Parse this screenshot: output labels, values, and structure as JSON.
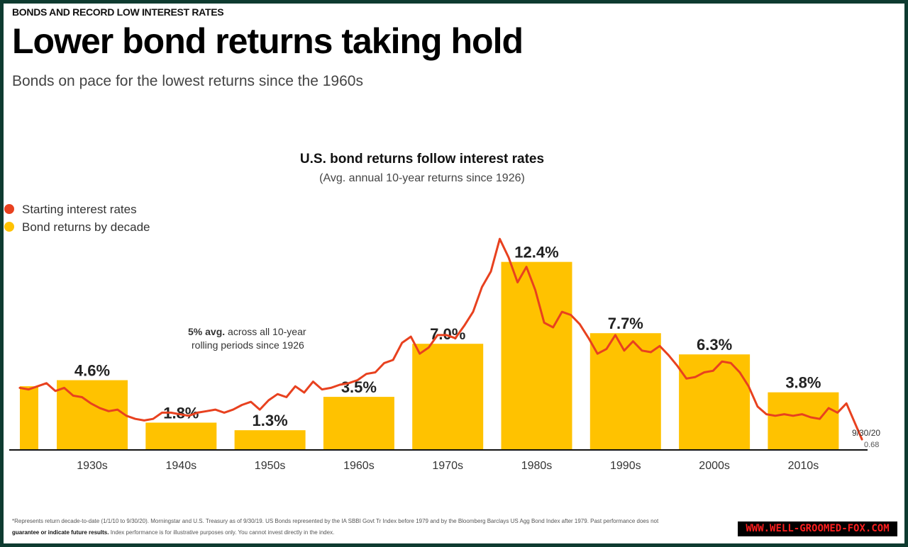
{
  "header": {
    "kicker": "BONDS AND RECORD LOW INTEREST RATES",
    "title": "Lower bond returns taking hold",
    "subtitle": "Bonds on pace for the lowest returns since the 1960s"
  },
  "chart_data": {
    "type": "bar",
    "title": "U.S. bond returns follow interest rates",
    "subtitle": "(Avg. annual 10-year returns since 1926)",
    "legend": {
      "placement": "top-left",
      "items": [
        {
          "label": "Starting interest rates",
          "color": "#e8411f"
        },
        {
          "label": "Bond returns by decade",
          "color": "#ffc200"
        }
      ]
    },
    "categories": [
      "1930s",
      "1940s",
      "1950s",
      "1960s",
      "1970s",
      "1980s",
      "1990s",
      "2000s",
      "2010s"
    ],
    "series": [
      {
        "name": "Bond returns by decade",
        "values": [
          4.6,
          1.8,
          1.3,
          3.5,
          7.0,
          12.4,
          7.7,
          6.3,
          3.8
        ],
        "labels": [
          "4.6%",
          "1.8%",
          "1.3%",
          "3.5%",
          "7.0%",
          "12.4%",
          "7.7%",
          "6.3%",
          "3.8%"
        ],
        "color": "#ffc200"
      },
      {
        "name": "Starting interest rates",
        "color": "#e8411f",
        "x": [
          1926,
          1927,
          1928,
          1929,
          1930,
          1931,
          1932,
          1933,
          1934,
          1935,
          1936,
          1937,
          1938,
          1939,
          1940,
          1941,
          1942,
          1943,
          1944,
          1945,
          1946,
          1947,
          1948,
          1949,
          1950,
          1951,
          1952,
          1953,
          1954,
          1955,
          1956,
          1957,
          1958,
          1959,
          1960,
          1961,
          1962,
          1963,
          1964,
          1965,
          1966,
          1967,
          1968,
          1969,
          1970,
          1971,
          1972,
          1973,
          1974,
          1975,
          1976,
          1977,
          1978,
          1979,
          1980,
          1981,
          1982,
          1983,
          1984,
          1985,
          1986,
          1987,
          1988,
          1989,
          1990,
          1991,
          1992,
          1993,
          1994,
          1995,
          1996,
          1997,
          1998,
          1999,
          2000,
          2001,
          2002,
          2003,
          2004,
          2005,
          2006,
          2007,
          2008,
          2009,
          2010,
          2011,
          2012,
          2013,
          2014,
          2015,
          2016,
          2017,
          2018,
          2019,
          2020.75
        ],
        "values": [
          4.0,
          3.9,
          4.1,
          4.3,
          3.8,
          4.0,
          3.5,
          3.4,
          3.0,
          2.7,
          2.5,
          2.6,
          2.2,
          2.0,
          1.9,
          2.0,
          2.4,
          2.4,
          2.3,
          2.2,
          2.4,
          2.5,
          2.6,
          2.4,
          2.6,
          2.9,
          3.1,
          2.6,
          3.2,
          3.6,
          3.4,
          4.1,
          3.7,
          4.4,
          3.9,
          4.0,
          4.2,
          4.3,
          4.5,
          4.9,
          5.0,
          5.6,
          5.8,
          6.9,
          7.3,
          6.2,
          6.6,
          7.4,
          7.4,
          7.2,
          8.0,
          8.9,
          10.5,
          11.5,
          13.6,
          12.4,
          10.8,
          11.8,
          10.3,
          8.2,
          7.9,
          8.9,
          8.7,
          8.1,
          7.2,
          6.2,
          6.5,
          7.4,
          6.4,
          7.0,
          6.4,
          6.3,
          6.7,
          6.1,
          5.4,
          4.6,
          4.7,
          5.0,
          5.1,
          5.7,
          5.6,
          5.0,
          4.1,
          2.8,
          2.3,
          2.2,
          2.3,
          2.2,
          2.3,
          2.1,
          2.0,
          2.7,
          2.4,
          3.0,
          0.68
        ]
      }
    ],
    "annotations": {
      "average_bold": "5% avg.",
      "average_text": " across all 10-year",
      "average_line2": "rolling periods since 1926",
      "end_date": "9/30/20",
      "end_value": "0.68"
    },
    "grid": false
  },
  "footnotes": {
    "line1": "*Represents return decade-to-date (1/1/10 to 9/30/20). Morningstar and U.S. Treasury as of 9/30/19. US Bonds represented by the IA SBBI Govt Tr Index before 1979 and by the Bloomberg Barclays US Agg Bond Index after 1979. Past performance does not",
    "line2_bold": "guarantee or indicate future results.",
    "line2_rest": " Index performance is for illustrative purposes only. You cannot invest directly in the index."
  },
  "watermark": "WWW.WELL-GROOMED-FOX.COM"
}
